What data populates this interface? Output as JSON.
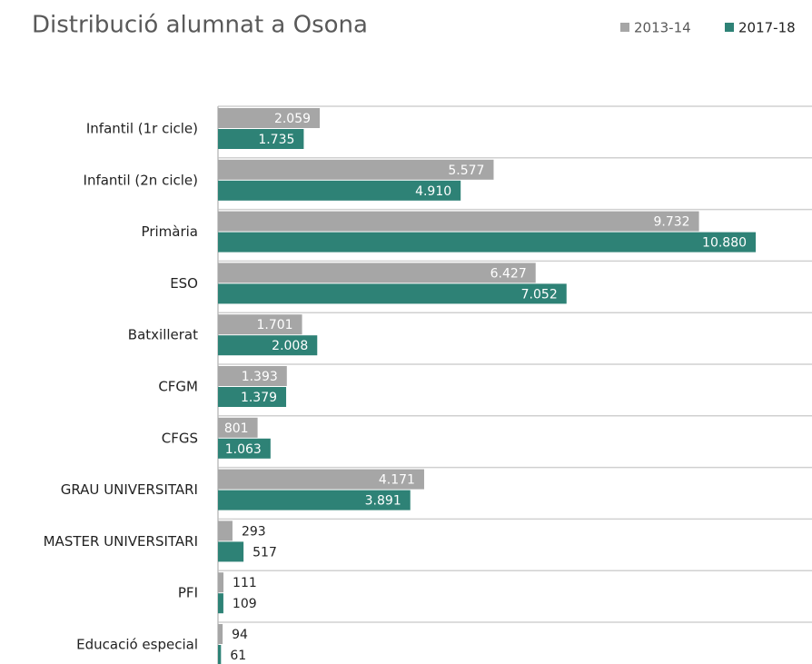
{
  "chart_data": {
    "type": "hbar",
    "title": "Distribució alumnat a Osona",
    "categories": [
      "Infantil (1r cicle)",
      "Infantil (2n cicle)",
      "Primària",
      "ESO",
      "Batxillerat",
      "CFGM",
      "CFGS",
      "GRAU UNIVERSITARI",
      "MASTER UNIVERSITARI",
      "PFI",
      "Educació especial"
    ],
    "series": [
      {
        "name": "2013-14",
        "color": "#a6a6a6",
        "values": [
          2059,
          5577,
          9732,
          6427,
          1701,
          1393,
          801,
          4171,
          293,
          111,
          94
        ],
        "value_labels": [
          "2.059",
          "5.577",
          "9.732",
          "6.427",
          "1.701",
          "1.393",
          "801",
          "4.171",
          "293",
          "111",
          "94"
        ]
      },
      {
        "name": "2017-18",
        "color": "#2e8276",
        "values": [
          1735,
          4910,
          10880,
          7052,
          2008,
          1379,
          1063,
          3891,
          517,
          109,
          61
        ],
        "value_labels": [
          "1.735",
          "4.910",
          "10.880",
          "7.052",
          "2.008",
          "1.379",
          "1.063",
          "3.891",
          "517",
          "109",
          "61"
        ]
      }
    ],
    "xlim": [
      0,
      12000
    ],
    "legend": "top-right"
  }
}
